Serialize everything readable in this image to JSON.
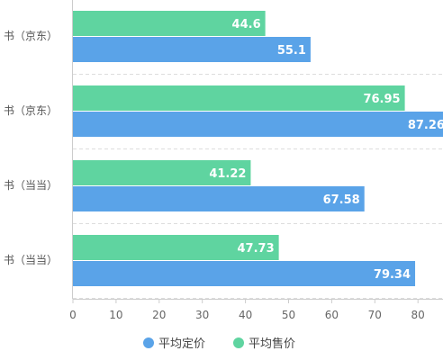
{
  "chart_data": {
    "type": "bar",
    "orientation": "horizontal",
    "categories": [
      "书（京东）",
      "书（京东）",
      "书（当当）",
      "书（当当）"
    ],
    "series": [
      {
        "name": "平均售价",
        "color": "#5fd4a0",
        "values": [
          44.6,
          76.95,
          41.22,
          47.73
        ]
      },
      {
        "name": "平均定价",
        "color": "#5aa3e8",
        "values": [
          55.1,
          87.26,
          67.58,
          79.34
        ]
      }
    ],
    "x_ticks": [
      "0",
      "10",
      "20",
      "30",
      "40",
      "50",
      "60",
      "70",
      "80"
    ],
    "xlim": [
      0,
      87.7
    ],
    "grid": "dashed horizontal separators",
    "legend": {
      "position": "bottom-center",
      "items": [
        {
          "label": "平均定价",
          "color": "#5aa3e8"
        },
        {
          "label": "平均售价",
          "color": "#5fd4a0"
        }
      ]
    }
  }
}
